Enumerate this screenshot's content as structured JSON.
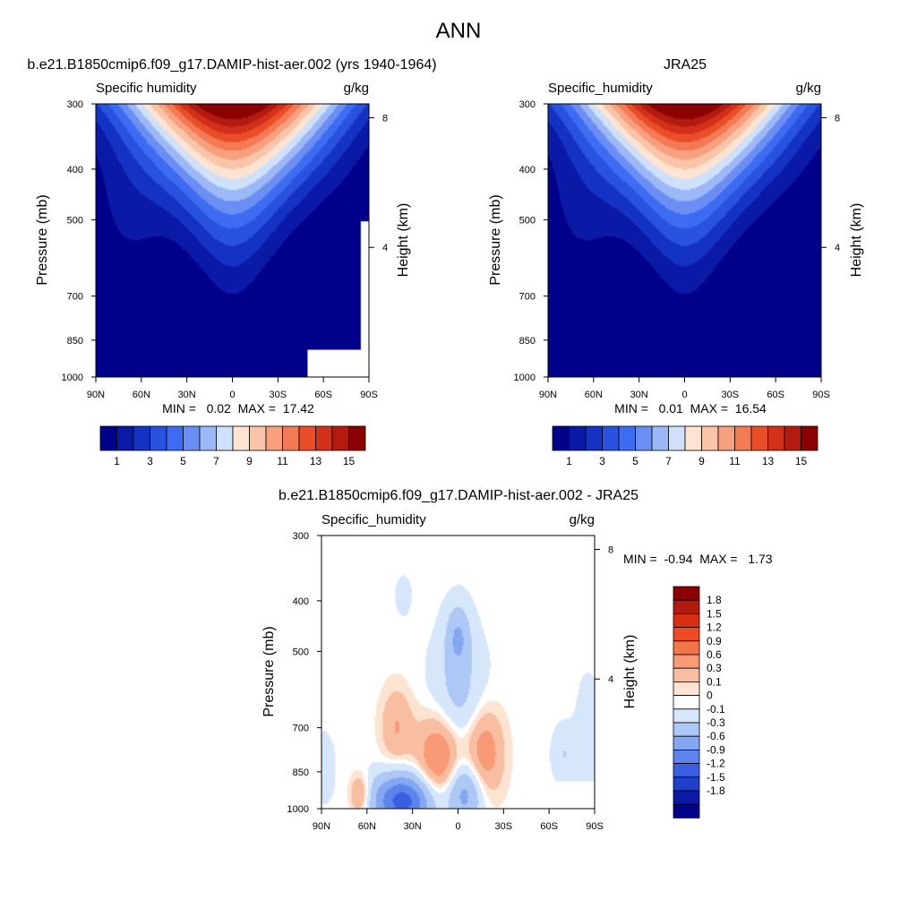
{
  "figure": {
    "main_title": "ANN"
  },
  "chart_data": [
    {
      "type": "heatmap",
      "title": "b.e21.B1850cmip6.f09_g17.DAMIP-hist-aer.002 (yrs 1940-1964)",
      "subtitle_left": "Specific humidity",
      "subtitle_right": "g/kg",
      "ylabel": "Pressure (mb)",
      "ylabel_right": "Height (km)",
      "x_ticks": [
        "90N",
        "60N",
        "30N",
        "0",
        "30S",
        "60S",
        "90S"
      ],
      "y_ticks": [
        "300",
        "400",
        "500",
        "700",
        "850",
        "1000"
      ],
      "y_ticks_right": [
        "8",
        "4"
      ],
      "xlim": [
        90,
        -90
      ],
      "ylim": [
        1000,
        300
      ],
      "stats": "MIN =   0.02  MAX =  17.42",
      "colorbar_labels": [
        "1",
        "3",
        "5",
        "7",
        "9",
        "11",
        "13",
        "15"
      ],
      "levels": [
        1,
        2,
        3,
        4,
        5,
        6,
        7,
        8,
        9,
        10,
        11,
        12,
        13,
        14,
        15
      ],
      "min": 0.02,
      "max": 17.42
    },
    {
      "type": "heatmap",
      "title": "JRA25",
      "subtitle_left": "Specific_humidity",
      "subtitle_right": "g/kg",
      "ylabel": "Pressure (mb)",
      "ylabel_right": "Height (km)",
      "x_ticks": [
        "90N",
        "60N",
        "30N",
        "0",
        "30S",
        "60S",
        "90S"
      ],
      "y_ticks": [
        "300",
        "400",
        "500",
        "700",
        "850",
        "1000"
      ],
      "y_ticks_right": [
        "8",
        "4"
      ],
      "xlim": [
        90,
        -90
      ],
      "ylim": [
        1000,
        300
      ],
      "stats": "MIN =   0.01  MAX =  16.54",
      "colorbar_labels": [
        "1",
        "3",
        "5",
        "7",
        "9",
        "11",
        "13",
        "15"
      ],
      "levels": [
        1,
        2,
        3,
        4,
        5,
        6,
        7,
        8,
        9,
        10,
        11,
        12,
        13,
        14,
        15
      ],
      "min": 0.01,
      "max": 16.54
    },
    {
      "type": "heatmap",
      "title": "b.e21.B1850cmip6.f09_g17.DAMIP-hist-aer.002 - JRA25",
      "subtitle_left": "Specific_humidity",
      "subtitle_right": "g/kg",
      "ylabel": "Pressure (mb)",
      "ylabel_right": "Height (km)",
      "x_ticks": [
        "90N",
        "60N",
        "30N",
        "0",
        "30S",
        "60S",
        "90S"
      ],
      "y_ticks": [
        "300",
        "400",
        "500",
        "700",
        "850",
        "1000"
      ],
      "y_ticks_right": [
        "8",
        "4"
      ],
      "xlim": [
        90,
        -90
      ],
      "ylim": [
        1000,
        300
      ],
      "stats": "MIN =  -0.94  MAX =   1.73",
      "colorbar_labels": [
        "1.8",
        "1.5",
        "1.2",
        "0.9",
        "0.6",
        "0.3",
        "0.1",
        "0",
        "-0.1",
        "-0.3",
        "-0.6",
        "-0.9",
        "-1.2",
        "-1.5",
        "-1.8"
      ],
      "min": -0.94,
      "max": 1.73
    }
  ],
  "colors": {
    "seq": [
      "#00008b",
      "#0a1aa6",
      "#1433c4",
      "#2952e0",
      "#3d6cf2",
      "#6b8ef5",
      "#9db8f7",
      "#cfe0fb",
      "#fde3d2",
      "#f9c4a8",
      "#f7a07e",
      "#f47a55",
      "#ea4e28",
      "#d2301a",
      "#b31a10",
      "#8b0000"
    ],
    "diff": [
      "#8b0000",
      "#b31a10",
      "#d62f14",
      "#ee4b24",
      "#f4744a",
      "#f79a75",
      "#f9bea2",
      "#fde4d2",
      "#ffffff",
      "#d6e6fb",
      "#aec8f6",
      "#85a7f1",
      "#5d83ec",
      "#3b5fe3",
      "#1f3fcd",
      "#0a1aa6",
      "#00008b"
    ],
    "missing": "#ffffff"
  }
}
